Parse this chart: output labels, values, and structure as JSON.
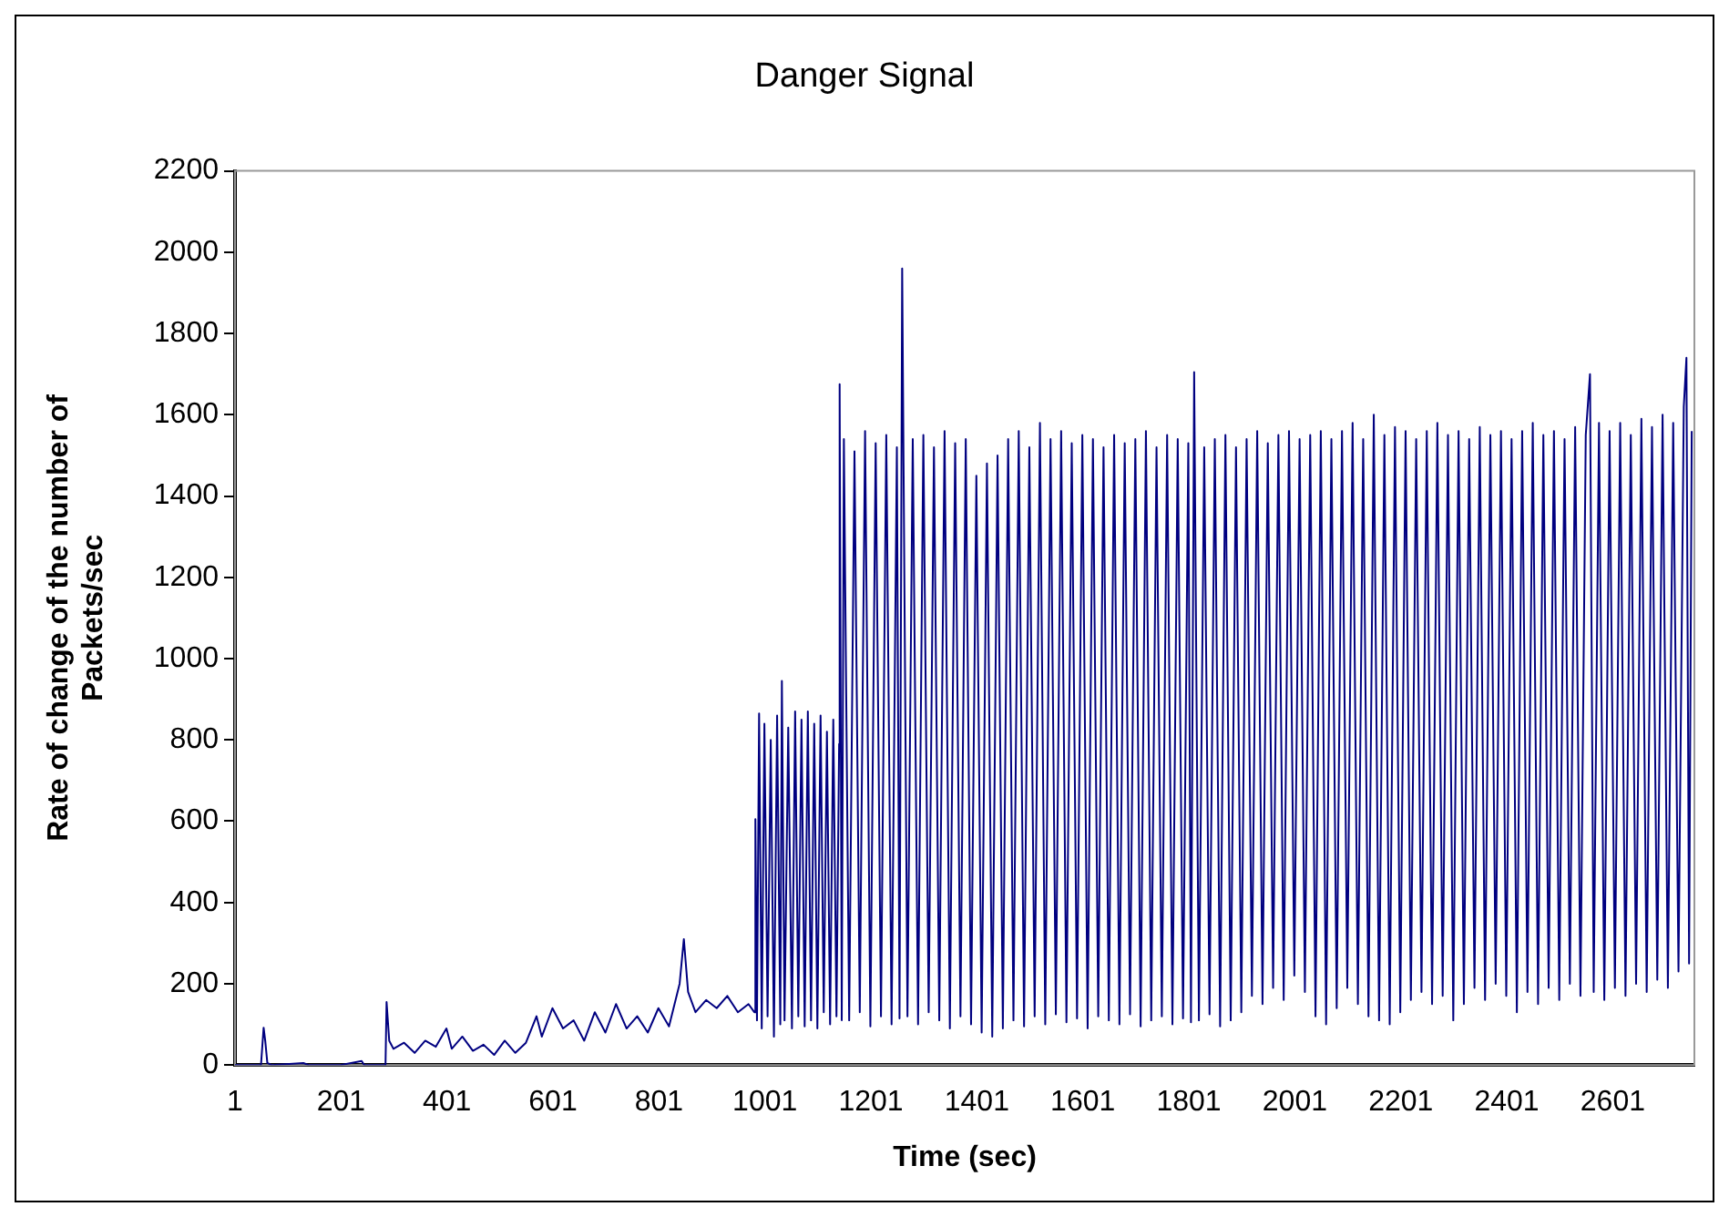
{
  "chart_data": {
    "type": "line",
    "title": "Danger Signal",
    "xlabel": "Time (sec)",
    "ylabel": "Rate of change of the number of Packets/sec",
    "xlim": [
      1,
      2755
    ],
    "xticks": [
      1,
      201,
      401,
      601,
      801,
      1001,
      1201,
      1401,
      1601,
      1801,
      2001,
      2201,
      2401,
      2601
    ],
    "ylim": [
      0,
      2200
    ],
    "yticks": [
      0,
      200,
      400,
      600,
      800,
      1000,
      1200,
      1400,
      1600,
      1800,
      2000,
      2200
    ],
    "grid": false,
    "legend": false,
    "marker": "none",
    "line_style": "solid",
    "series": [
      {
        "color": "#000080",
        "x": [
          1,
          50,
          55,
          58,
          62,
          70,
          130,
          140,
          200,
          240,
          245,
          285,
          287,
          292,
          300,
          320,
          340,
          360,
          380,
          400,
          410,
          430,
          450,
          470,
          490,
          510,
          530,
          550,
          570,
          580,
          600,
          620,
          640,
          660,
          680,
          700,
          720,
          740,
          760,
          780,
          800,
          820,
          840,
          848,
          856,
          870,
          890,
          910,
          930,
          950,
          970,
          981,
          983,
          986,
          990,
          995,
          1000,
          1006,
          1012,
          1018,
          1024,
          1030,
          1033,
          1038,
          1045,
          1052,
          1058,
          1064,
          1070,
          1076,
          1082,
          1088,
          1094,
          1100,
          1106,
          1112,
          1118,
          1124,
          1130,
          1136,
          1141,
          1142,
          1146,
          1150,
          1160,
          1170,
          1180,
          1190,
          1200,
          1210,
          1220,
          1230,
          1240,
          1250,
          1255,
          1260,
          1270,
          1280,
          1290,
          1300,
          1310,
          1320,
          1330,
          1340,
          1350,
          1360,
          1370,
          1380,
          1390,
          1400,
          1410,
          1420,
          1430,
          1440,
          1450,
          1460,
          1470,
          1480,
          1490,
          1500,
          1510,
          1520,
          1530,
          1540,
          1550,
          1560,
          1570,
          1580,
          1590,
          1600,
          1610,
          1620,
          1630,
          1640,
          1650,
          1660,
          1670,
          1680,
          1690,
          1700,
          1710,
          1720,
          1730,
          1740,
          1750,
          1760,
          1770,
          1780,
          1790,
          1800,
          1805,
          1811,
          1820,
          1830,
          1840,
          1850,
          1860,
          1870,
          1880,
          1890,
          1900,
          1910,
          1920,
          1930,
          1940,
          1950,
          1960,
          1970,
          1980,
          1990,
          2000,
          2010,
          2020,
          2030,
          2040,
          2050,
          2060,
          2070,
          2080,
          2090,
          2100,
          2110,
          2120,
          2130,
          2140,
          2150,
          2160,
          2170,
          2180,
          2190,
          2200,
          2210,
          2220,
          2230,
          2240,
          2250,
          2260,
          2270,
          2280,
          2290,
          2300,
          2310,
          2320,
          2330,
          2340,
          2350,
          2360,
          2370,
          2380,
          2390,
          2400,
          2410,
          2420,
          2430,
          2440,
          2450,
          2460,
          2470,
          2480,
          2490,
          2500,
          2510,
          2520,
          2530,
          2540,
          2550,
          2558,
          2565,
          2575,
          2585,
          2595,
          2605,
          2615,
          2625,
          2635,
          2645,
          2655,
          2665,
          2675,
          2685,
          2695,
          2705,
          2715,
          2725,
          2735,
          2740,
          2745,
          2750
        ],
        "values": [
          0,
          0,
          92,
          60,
          5,
          0,
          5,
          0,
          0,
          10,
          0,
          0,
          155,
          60,
          40,
          55,
          30,
          60,
          45,
          90,
          40,
          70,
          35,
          50,
          25,
          60,
          30,
          55,
          120,
          70,
          140,
          90,
          110,
          60,
          130,
          80,
          150,
          90,
          120,
          80,
          140,
          95,
          200,
          310,
          180,
          130,
          160,
          140,
          170,
          130,
          150,
          130,
          605,
          110,
          865,
          90,
          840,
          120,
          800,
          70,
          860,
          100,
          945,
          110,
          830,
          90,
          870,
          120,
          850,
          95,
          870,
          110,
          840,
          90,
          860,
          130,
          820,
          100,
          850,
          120,
          790,
          1675,
          110,
          1540,
          110,
          1510,
          130,
          1560,
          95,
          1530,
          120,
          1550,
          100,
          1520,
          115,
          1960,
          120,
          1540,
          100,
          1550,
          130,
          1520,
          110,
          1560,
          90,
          1530,
          120,
          1540,
          100,
          1450,
          80,
          1480,
          70,
          1500,
          90,
          1540,
          110,
          1560,
          95,
          1520,
          120,
          1580,
          100,
          1540,
          125,
          1560,
          105,
          1530,
          115,
          1550,
          90,
          1540,
          120,
          1520,
          110,
          1550,
          100,
          1530,
          125,
          1540,
          95,
          1560,
          110,
          1520,
          120,
          1550,
          100,
          1540,
          115,
          1530,
          105,
          1705,
          110,
          1520,
          125,
          1540,
          95,
          1550,
          110,
          1520,
          130,
          1540,
          170,
          1560,
          150,
          1530,
          190,
          1550,
          160,
          1560,
          220,
          1540,
          180,
          1550,
          120,
          1560,
          100,
          1540,
          140,
          1560,
          190,
          1580,
          150,
          1540,
          120,
          1600,
          110,
          1550,
          100,
          1570,
          130,
          1560,
          160,
          1540,
          180,
          1560,
          150,
          1580,
          170,
          1550,
          110,
          1560,
          150,
          1540,
          190,
          1570,
          160,
          1550,
          200,
          1560,
          170,
          1540,
          130,
          1560,
          180,
          1580,
          150,
          1550,
          190,
          1560,
          160,
          1540,
          200,
          1570,
          170,
          1550,
          1700,
          180,
          1580,
          160,
          1560,
          190,
          1580,
          170,
          1550,
          200,
          1590,
          180,
          1570,
          210,
          1600,
          190,
          1580,
          230,
          1620,
          1740,
          250,
          1560
        ]
      }
    ]
  }
}
